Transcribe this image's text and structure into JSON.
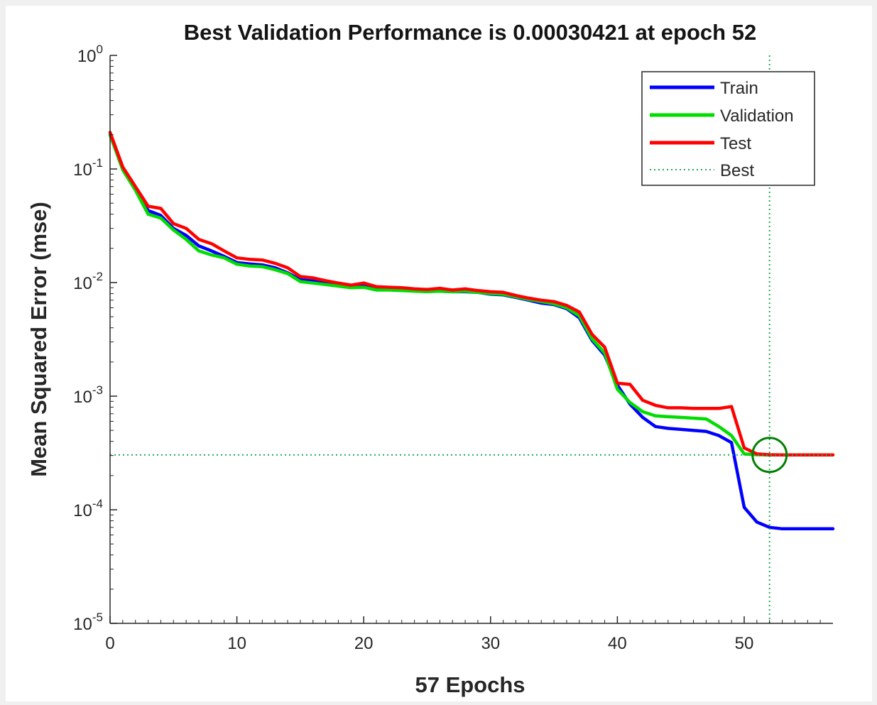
{
  "chart_data": {
    "type": "line",
    "title": "Best Validation Performance is 0.00030421 at epoch 52",
    "xlabel": "57 Epochs",
    "ylabel": "Mean Squared Error  (mse)",
    "xscale": "linear",
    "yscale": "log",
    "xlim": [
      0,
      57
    ],
    "ylim": [
      1e-05,
      1
    ],
    "x_ticks": [
      0,
      10,
      20,
      30,
      40,
      50
    ],
    "y_ticks": [
      {
        "value": 1,
        "base": "10",
        "exp": "0"
      },
      {
        "value": 0.1,
        "base": "10",
        "exp": "-1"
      },
      {
        "value": 0.01,
        "base": "10",
        "exp": "-2"
      },
      {
        "value": 0.001,
        "base": "10",
        "exp": "-3"
      },
      {
        "value": 0.0001,
        "base": "10",
        "exp": "-4"
      },
      {
        "value": 1e-05,
        "base": "10",
        "exp": "-5"
      }
    ],
    "legend_position": "top-right",
    "x": [
      0,
      1,
      2,
      3,
      4,
      5,
      6,
      7,
      8,
      9,
      10,
      11,
      12,
      13,
      14,
      15,
      16,
      17,
      18,
      19,
      20,
      21,
      22,
      23,
      24,
      25,
      26,
      27,
      28,
      29,
      30,
      31,
      32,
      33,
      34,
      35,
      36,
      37,
      38,
      39,
      40,
      41,
      42,
      43,
      44,
      45,
      46,
      47,
      48,
      49,
      50,
      51,
      52,
      53,
      54,
      55,
      56,
      57
    ],
    "series": [
      {
        "name": "Train",
        "color": "#0000ff",
        "values": [
          0.2,
          0.1,
          0.068,
          0.043,
          0.039,
          0.03,
          0.026,
          0.021,
          0.019,
          0.017,
          0.015,
          0.0146,
          0.0143,
          0.0135,
          0.0122,
          0.0106,
          0.0103,
          0.0099,
          0.0095,
          0.0092,
          0.0093,
          0.0087,
          0.0087,
          0.0086,
          0.0085,
          0.0084,
          0.0084,
          0.0083,
          0.0083,
          0.0082,
          0.0079,
          0.0078,
          0.0074,
          0.007,
          0.0066,
          0.0064,
          0.0059,
          0.0049,
          0.0031,
          0.0023,
          0.00125,
          0.00085,
          0.00065,
          0.00054,
          0.00052,
          0.00051,
          0.0005,
          0.00049,
          0.00045,
          0.00039,
          0.000105,
          7.8e-05,
          7e-05,
          6.8e-05,
          6.8e-05,
          6.8e-05,
          6.8e-05,
          6.8e-05
        ]
      },
      {
        "name": "Validation",
        "color": "#00dd00",
        "values": [
          0.2,
          0.098,
          0.065,
          0.04,
          0.037,
          0.029,
          0.024,
          0.019,
          0.0175,
          0.0165,
          0.0145,
          0.014,
          0.0138,
          0.013,
          0.012,
          0.0102,
          0.0099,
          0.0096,
          0.0093,
          0.009,
          0.0091,
          0.0086,
          0.0086,
          0.0085,
          0.0084,
          0.0083,
          0.0084,
          0.0083,
          0.0084,
          0.0082,
          0.008,
          0.0079,
          0.0075,
          0.0071,
          0.0068,
          0.0065,
          0.006,
          0.0051,
          0.0032,
          0.0024,
          0.00115,
          0.00088,
          0.00073,
          0.00067,
          0.00066,
          0.00065,
          0.00064,
          0.00063,
          0.00054,
          0.00045,
          0.00031,
          0.000305,
          0.00030421,
          0.000304,
          0.000304,
          0.000304,
          0.000304,
          0.000304
        ]
      },
      {
        "name": "Test",
        "color": "#ff0000",
        "values": [
          0.21,
          0.104,
          0.07,
          0.047,
          0.045,
          0.033,
          0.03,
          0.024,
          0.022,
          0.019,
          0.0165,
          0.016,
          0.0158,
          0.0148,
          0.0135,
          0.0113,
          0.011,
          0.0104,
          0.0099,
          0.0095,
          0.0099,
          0.0092,
          0.0091,
          0.009,
          0.0088,
          0.0087,
          0.0089,
          0.0086,
          0.0088,
          0.0085,
          0.0083,
          0.0082,
          0.0077,
          0.0073,
          0.007,
          0.0068,
          0.0063,
          0.0055,
          0.0035,
          0.0027,
          0.0013,
          0.00127,
          0.00092,
          0.00083,
          0.00079,
          0.00079,
          0.00078,
          0.00078,
          0.00078,
          0.00081,
          0.00035,
          0.00031,
          0.000305,
          0.000304,
          0.000304,
          0.000304,
          0.000304,
          0.000304
        ]
      }
    ],
    "best": {
      "name": "Best",
      "color": "#22aa55",
      "circle_color": "#008000",
      "epoch": 52,
      "value": 0.00030421
    }
  }
}
